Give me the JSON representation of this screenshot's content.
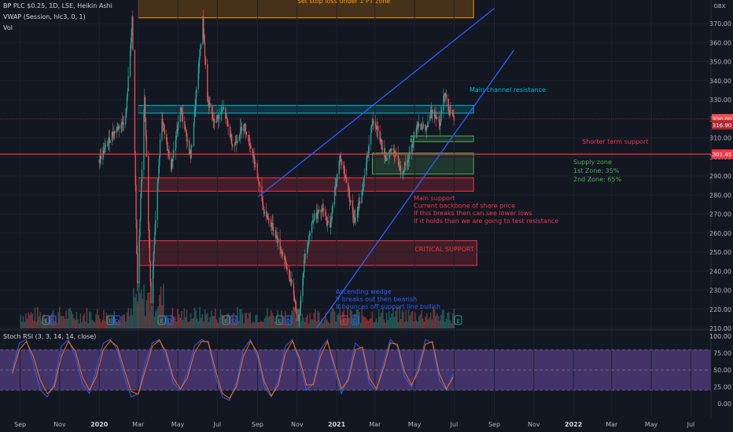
{
  "legend": {
    "symbol": "BP PLC $0.25, 1D, LSE, Heikin Ashi",
    "vwap": "VWAP (Session, hlc3, 0, 1)",
    "vol": "Vol",
    "stoch": "Stoch RSI (3, 3, 14, 14, close)"
  },
  "currency": "GBX",
  "price_tags": {
    "last": "320.00",
    "vwap": "316.90",
    "support": "301.45"
  },
  "annotations": {
    "stop_loss": "Set stop loss under 1 PT zone",
    "main_channel": "Main channel resistance",
    "shorter_term": "Shorter term support",
    "supply_zone": [
      "Supply zone",
      "1st Zone: 35%",
      "2nd Zone: 65%"
    ],
    "main_support": [
      "Main support",
      "Current backbone of share price",
      "If this breaks then can see lower lows",
      "If it holds then we are going to test resistance"
    ],
    "critical": "CRITICAL SUPPORT",
    "wedge": [
      "Ascending wedge",
      "If breaks out then bearish",
      "If bounces off support line bullish"
    ]
  },
  "event_markers": [
    "E",
    "D",
    "D",
    "E",
    "D",
    "D",
    "E",
    "D",
    "E",
    "D",
    "E"
  ],
  "chart_data": [
    {
      "type": "candlestick",
      "title": "BP PLC $0.25, 1D, LSE, Heikin Ashi",
      "y_unit": "GBX",
      "ylim": [
        208,
        382
      ],
      "y_ticks": [
        210,
        220,
        230,
        240,
        250,
        260,
        270,
        280,
        290,
        300,
        310,
        320,
        330,
        340,
        350,
        360,
        370
      ],
      "x_ticks": [
        "Sep",
        "Nov",
        "2020",
        "Mar",
        "May",
        "Jul",
        "Sep",
        "Nov",
        "2021",
        "Mar",
        "May",
        "Jul",
        "Sep",
        "Nov",
        "2022",
        "Mar",
        "May",
        "Jul"
      ],
      "price_path": [
        [
          "2019-12-31",
          298
        ],
        [
          "2020-01-20",
          312
        ],
        [
          "2020-02-10",
          320
        ],
        [
          "2020-02-20",
          372
        ],
        [
          "2020-02-28",
          232
        ],
        [
          "2020-03-10",
          330
        ],
        [
          "2020-03-20",
          225
        ],
        [
          "2020-04-05",
          320
        ],
        [
          "2020-04-20",
          295
        ],
        [
          "2020-05-05",
          325
        ],
        [
          "2020-05-20",
          300
        ],
        [
          "2020-05-28",
          330
        ],
        [
          "2020-06-08",
          372
        ],
        [
          "2020-06-15",
          330
        ],
        [
          "2020-06-25",
          318
        ],
        [
          "2020-07-10",
          325
        ],
        [
          "2020-07-25",
          305
        ],
        [
          "2020-08-10",
          318
        ],
        [
          "2020-08-25",
          300
        ],
        [
          "2020-09-10",
          272
        ],
        [
          "2020-09-25",
          262
        ],
        [
          "2020-10-10",
          248
        ],
        [
          "2020-10-25",
          230
        ],
        [
          "2020-11-02",
          212
        ],
        [
          "2020-11-12",
          248
        ],
        [
          "2020-11-25",
          268
        ],
        [
          "2020-12-10",
          272
        ],
        [
          "2020-12-20",
          262
        ],
        [
          "2021-01-05",
          300
        ],
        [
          "2021-01-15",
          288
        ],
        [
          "2021-01-28",
          265
        ],
        [
          "2021-02-10",
          285
        ],
        [
          "2021-02-25",
          320
        ],
        [
          "2021-03-05",
          315
        ],
        [
          "2021-03-15",
          298
        ],
        [
          "2021-03-28",
          305
        ],
        [
          "2021-04-10",
          292
        ],
        [
          "2021-04-22",
          300
        ],
        [
          "2021-05-05",
          318
        ],
        [
          "2021-05-18",
          314
        ],
        [
          "2021-05-28",
          325
        ],
        [
          "2021-06-08",
          318
        ],
        [
          "2021-06-16",
          335
        ],
        [
          "2021-06-22",
          324
        ],
        [
          "2021-06-30",
          320
        ]
      ],
      "zones": [
        {
          "label": "Set stop loss under 1 PT zone",
          "from": "2020-03-01",
          "to": "2021-07-31",
          "top": 385,
          "bottom": 373
        },
        {
          "label": "Main channel resistance",
          "from": "2020-03-01",
          "to": "2021-07-31",
          "top": 327,
          "bottom": 323
        },
        {
          "label": "Supply zone 1st",
          "from": "2021-04-25",
          "to": "2021-07-31",
          "top": 311,
          "bottom": 308
        },
        {
          "label": "Supply zone 2nd",
          "from": "2021-02-25",
          "to": "2021-07-31",
          "top": 302,
          "bottom": 291
        },
        {
          "label": "Main support",
          "from": "2020-03-01",
          "to": "2021-07-31",
          "top": 289,
          "bottom": 282
        },
        {
          "label": "CRITICAL SUPPORT",
          "from": "2020-03-01",
          "to": "2021-08-05",
          "top": 256,
          "bottom": 243
        }
      ],
      "horizontal_lines": [
        {
          "label": "Shorter term support",
          "value": 301.45
        },
        {
          "label": "Last",
          "value": 320
        }
      ],
      "trendlines": [
        {
          "label": "Main channel resistance",
          "from": [
            "2020-09-02",
            279
          ],
          "to": [
            "2021-09-01",
            378
          ]
        },
        {
          "label": "Ascending wedge support",
          "from": [
            "2020-12-01",
            210
          ],
          "to": [
            "2021-10-01",
            356
          ]
        }
      ]
    },
    {
      "type": "line",
      "title": "Stoch RSI (3, 3, 14, 14, close)",
      "ylim": [
        -5,
        105
      ],
      "y_ticks": [
        0,
        25,
        50,
        75,
        100
      ],
      "y_tick_labels": [
        "0.00",
        "25.00",
        "50.00",
        "75.00",
        "100.00"
      ],
      "band": [
        20,
        80
      ],
      "series": [
        {
          "name": "K",
          "values": [
            50,
            90,
            95,
            60,
            20,
            10,
            30,
            85,
            95,
            70,
            30,
            15,
            50,
            90,
            95,
            80,
            40,
            10,
            15,
            60,
            90,
            95,
            70,
            30,
            20,
            45,
            85,
            95,
            90,
            40,
            10,
            5,
            30,
            80,
            95,
            70,
            25,
            10,
            35,
            85,
            95,
            60,
            20,
            30,
            80,
            95,
            50,
            15,
            40,
            90,
            80,
            30,
            20,
            60,
            95,
            85,
            40,
            25,
            55,
            95,
            90,
            35,
            20,
            45
          ]
        },
        {
          "name": "D",
          "values": [
            45,
            80,
            92,
            70,
            35,
            15,
            25,
            70,
            92,
            78,
            40,
            20,
            40,
            80,
            93,
            85,
            50,
            18,
            14,
            50,
            85,
            94,
            76,
            38,
            22,
            38,
            75,
            92,
            92,
            50,
            15,
            8,
            25,
            70,
            92,
            76,
            32,
            12,
            28,
            75,
            93,
            68,
            28,
            28,
            70,
            92,
            58,
            22,
            35,
            80,
            84,
            38,
            22,
            52,
            90,
            88,
            48,
            28,
            48,
            88,
            92,
            44,
            22,
            40
          ]
        }
      ]
    }
  ]
}
